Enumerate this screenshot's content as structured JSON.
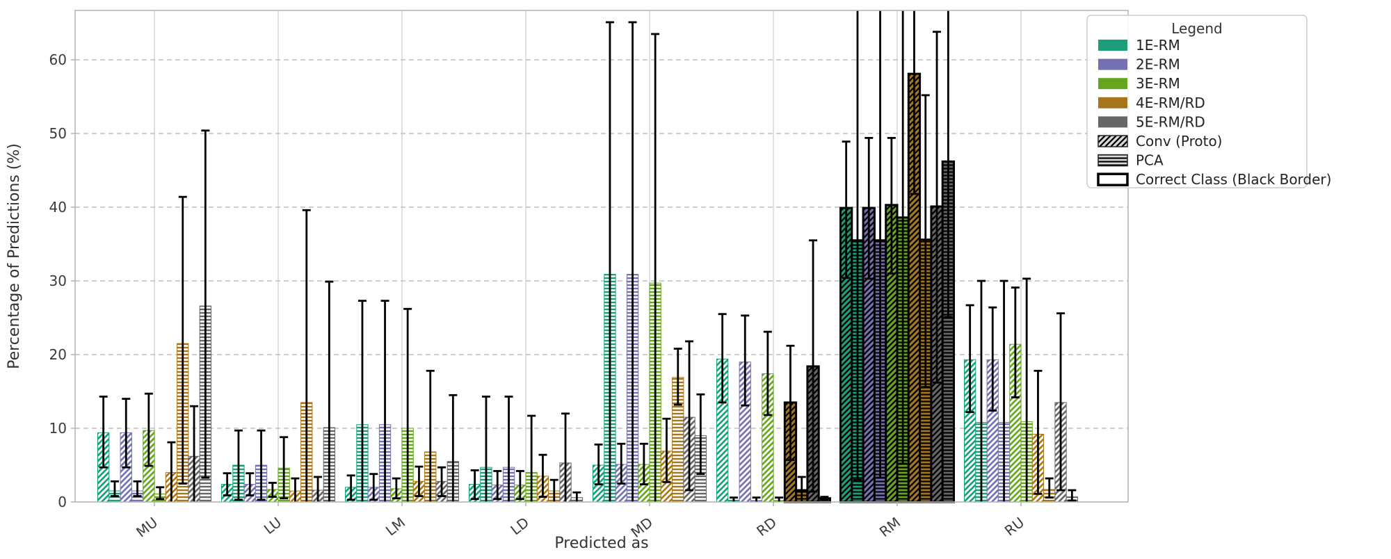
{
  "axes": {
    "xlabel": "Predicted as",
    "ylabel": "Percentage of Predictions (%)",
    "yticks": [
      0,
      10,
      20,
      30,
      40,
      50,
      60
    ],
    "ylim": [
      0,
      66.7
    ]
  },
  "legend": {
    "title": "Legend",
    "items": [
      {
        "label": "1E-RM",
        "swatch": "color",
        "color": "#1b9e77"
      },
      {
        "label": "2E-RM",
        "swatch": "color",
        "color": "#7570b3"
      },
      {
        "label": "3E-RM",
        "swatch": "color",
        "color": "#66a61e"
      },
      {
        "label": "4E-RM/RD",
        "swatch": "color",
        "color": "#a6761d"
      },
      {
        "label": "5E-RM/RD",
        "swatch": "color",
        "color": "#666666"
      },
      {
        "label": "Conv (Proto)",
        "swatch": "hatch-diag"
      },
      {
        "label": "PCA",
        "swatch": "hatch-horiz"
      },
      {
        "label": "Correct Class (Black Border)",
        "swatch": "border"
      }
    ]
  },
  "chart_data": {
    "type": "bar",
    "title": "",
    "xlabel": "Predicted as",
    "ylabel": "Percentage of Predictions (%)",
    "ylim": [
      0,
      66.7
    ],
    "grid": true,
    "legend_position": "upper right",
    "categories": [
      "MU",
      "LU",
      "LM",
      "LD",
      "MD",
      "RD",
      "RM",
      "RU"
    ],
    "series_labels": [
      "1E-RM",
      "2E-RM",
      "3E-RM",
      "4E-RM/RD",
      "5E-RM/RD"
    ],
    "methods": [
      "Conv (Proto)",
      "PCA"
    ],
    "series_colors": [
      "#1b9e77",
      "#7570b3",
      "#66a61e",
      "#a6761d",
      "#666666"
    ],
    "bar_order_note": "per category: 10 bars = [1E-Conv,1E-PCA,2E-Conv,2E-PCA,3E-Conv,3E-PCA,4E-Conv,4E-PCA,5E-Conv,5E-PCA]; each bar = [value, err_low, err_high] in %",
    "groups": [
      {
        "category": "MU",
        "correct_bars": [],
        "bars": [
          [
            9.4,
            4.7,
            14.3
          ],
          [
            1.5,
            0.8,
            2.8
          ],
          [
            9.4,
            4.7,
            14.0
          ],
          [
            1.5,
            0.8,
            2.8
          ],
          [
            9.7,
            4.9,
            14.7
          ],
          [
            1.1,
            0.4,
            2.0
          ],
          [
            4.0,
            0,
            8.1
          ],
          [
            21.5,
            2.5,
            41.4
          ],
          [
            6.2,
            0,
            13.0
          ],
          [
            26.6,
            3.3,
            50.4
          ]
        ]
      },
      {
        "category": "LU",
        "correct_bars": [],
        "bars": [
          [
            2.4,
            0.9,
            3.9
          ],
          [
            5.0,
            0.3,
            9.7
          ],
          [
            2.4,
            0.9,
            3.9
          ],
          [
            5.0,
            0.3,
            9.7
          ],
          [
            1.7,
            0.7,
            2.6
          ],
          [
            4.6,
            0.5,
            8.8
          ],
          [
            1.5,
            0,
            3.2
          ],
          [
            13.5,
            0,
            39.6
          ],
          [
            1.6,
            0,
            3.4
          ],
          [
            10.1,
            0,
            29.9
          ]
        ]
      },
      {
        "category": "LM",
        "correct_bars": [],
        "bars": [
          [
            2.0,
            0.3,
            3.6
          ],
          [
            10.5,
            0,
            27.3
          ],
          [
            2.0,
            0.3,
            3.8
          ],
          [
            10.5,
            0,
            27.3
          ],
          [
            1.8,
            0.5,
            3.2
          ],
          [
            10.0,
            0,
            26.2
          ],
          [
            2.8,
            0.8,
            4.8
          ],
          [
            6.8,
            0,
            17.8
          ],
          [
            2.8,
            0.8,
            4.7
          ],
          [
            5.5,
            0,
            14.5
          ]
        ]
      },
      {
        "category": "LD",
        "correct_bars": [],
        "bars": [
          [
            2.4,
            0.4,
            4.3
          ],
          [
            4.7,
            0,
            14.3
          ],
          [
            2.3,
            0.4,
            4.2
          ],
          [
            4.7,
            0,
            14.3
          ],
          [
            2.3,
            0.4,
            4.2
          ],
          [
            4.0,
            0,
            11.7
          ],
          [
            3.5,
            0.7,
            6.4
          ],
          [
            1.5,
            0,
            3.0
          ],
          [
            5.3,
            0,
            12.0
          ],
          [
            0.6,
            0,
            1.3
          ]
        ]
      },
      {
        "category": "MD",
        "correct_bars": [],
        "bars": [
          [
            5.0,
            2.4,
            7.8
          ],
          [
            30.9,
            0,
            65.1
          ],
          [
            5.1,
            2.5,
            7.9
          ],
          [
            30.9,
            0,
            65.1
          ],
          [
            5.1,
            2.4,
            7.9
          ],
          [
            29.7,
            0,
            63.5
          ],
          [
            6.9,
            2.7,
            11.3
          ],
          [
            16.9,
            13.2,
            20.8
          ],
          [
            11.5,
            1.6,
            21.8
          ],
          [
            9.0,
            3.8,
            14.6
          ]
        ]
      },
      {
        "category": "RD",
        "correct_bars": [
          6,
          7,
          8,
          9
        ],
        "bars": [
          [
            19.4,
            13.5,
            25.5
          ],
          [
            0.25,
            0,
            0.6
          ],
          [
            19.0,
            13.1,
            25.3
          ],
          [
            0.2,
            0,
            0.6
          ],
          [
            17.4,
            11.8,
            23.1
          ],
          [
            0.2,
            0,
            0.6
          ],
          [
            13.5,
            5.7,
            21.2
          ],
          [
            1.6,
            0,
            3.4
          ],
          [
            18.4,
            1.4,
            35.5
          ],
          [
            0.5,
            0.3,
            0.7
          ]
        ]
      },
      {
        "category": "RM",
        "correct_bars": [
          0,
          1,
          2,
          3,
          4,
          5,
          6,
          7,
          8,
          9
        ],
        "bars": [
          [
            39.9,
            30.4,
            48.9
          ],
          [
            35.5,
            3.0,
            67.5
          ],
          [
            39.9,
            30.3,
            49.4
          ],
          [
            35.5,
            3.3,
            67.5
          ],
          [
            40.3,
            31.0,
            49.4
          ],
          [
            38.6,
            5.2,
            67.5
          ],
          [
            58.1,
            41.8,
            67.5
          ],
          [
            35.6,
            15.6,
            55.2
          ],
          [
            40.1,
            16.2,
            63.8
          ],
          [
            46.2,
            25.1,
            67.5
          ]
        ]
      },
      {
        "category": "RU",
        "correct_bars": [],
        "bars": [
          [
            19.3,
            12.2,
            26.7
          ],
          [
            10.8,
            0,
            30.0
          ],
          [
            19.3,
            12.4,
            26.4
          ],
          [
            10.8,
            0,
            30.0
          ],
          [
            21.4,
            14.2,
            29.1
          ],
          [
            10.9,
            0,
            30.3
          ],
          [
            9.2,
            1.1,
            17.8
          ],
          [
            1.7,
            0.6,
            3.2
          ],
          [
            13.5,
            1.6,
            25.6
          ],
          [
            0.7,
            0.2,
            1.6
          ]
        ]
      }
    ]
  }
}
